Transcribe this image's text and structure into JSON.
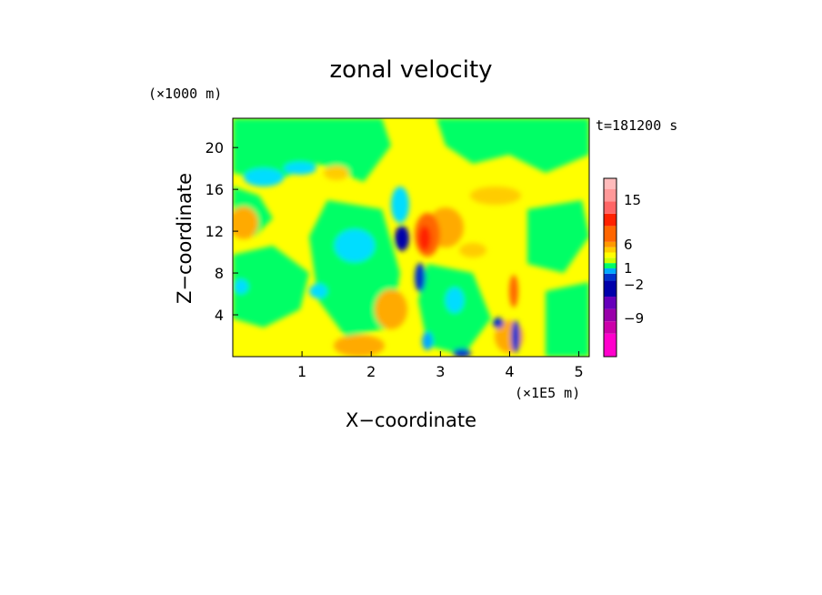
{
  "chart_data": {
    "type": "heatmap",
    "title": "zonal velocity",
    "xlabel": "X−coordinate",
    "ylabel": "Z−coordinate",
    "x_unit": "(×1E5 m)",
    "y_unit": "(×1000 m)",
    "time_label": "t=181200 s",
    "xlim": [
      0,
      5.15
    ],
    "ylim": [
      0,
      22.8
    ],
    "x_ticks": [
      1,
      2,
      3,
      4,
      5
    ],
    "y_ticks": [
      4,
      8,
      12,
      16,
      20
    ],
    "colorbar": {
      "tick_labels": [
        "15",
        "6",
        "1",
        "−2",
        "−9"
      ],
      "colors": [
        "#ff00cc",
        "#cc00aa",
        "#9900aa",
        "#6600bb",
        "#0000aa",
        "#0033cc",
        "#00aaff",
        "#00ff66",
        "#ccff00",
        "#ffff00",
        "#ffcc00",
        "#ff9900",
        "#ff6600",
        "#ff2200",
        "#ff6666",
        "#ff9999",
        "#ffbbbb"
      ]
    },
    "field_features": [
      {
        "x": 2.65,
        "z": 12.0,
        "value": 6
      },
      {
        "x": 2.4,
        "z": 11.5,
        "value": -9
      },
      {
        "x": 2.55,
        "z": 7.5,
        "value": -6
      },
      {
        "x": 3.95,
        "z": 6.0,
        "value": 4
      },
      {
        "x": 4.05,
        "z": 2.0,
        "value": -5
      },
      {
        "x": 0.2,
        "z": 13.0,
        "value": 3
      },
      {
        "x": 0.6,
        "z": 17.5,
        "value": -1
      },
      {
        "x": 1.5,
        "z": 7.0,
        "value": -1
      },
      {
        "x": 3.2,
        "z": 14.5,
        "value": 2
      }
    ]
  }
}
